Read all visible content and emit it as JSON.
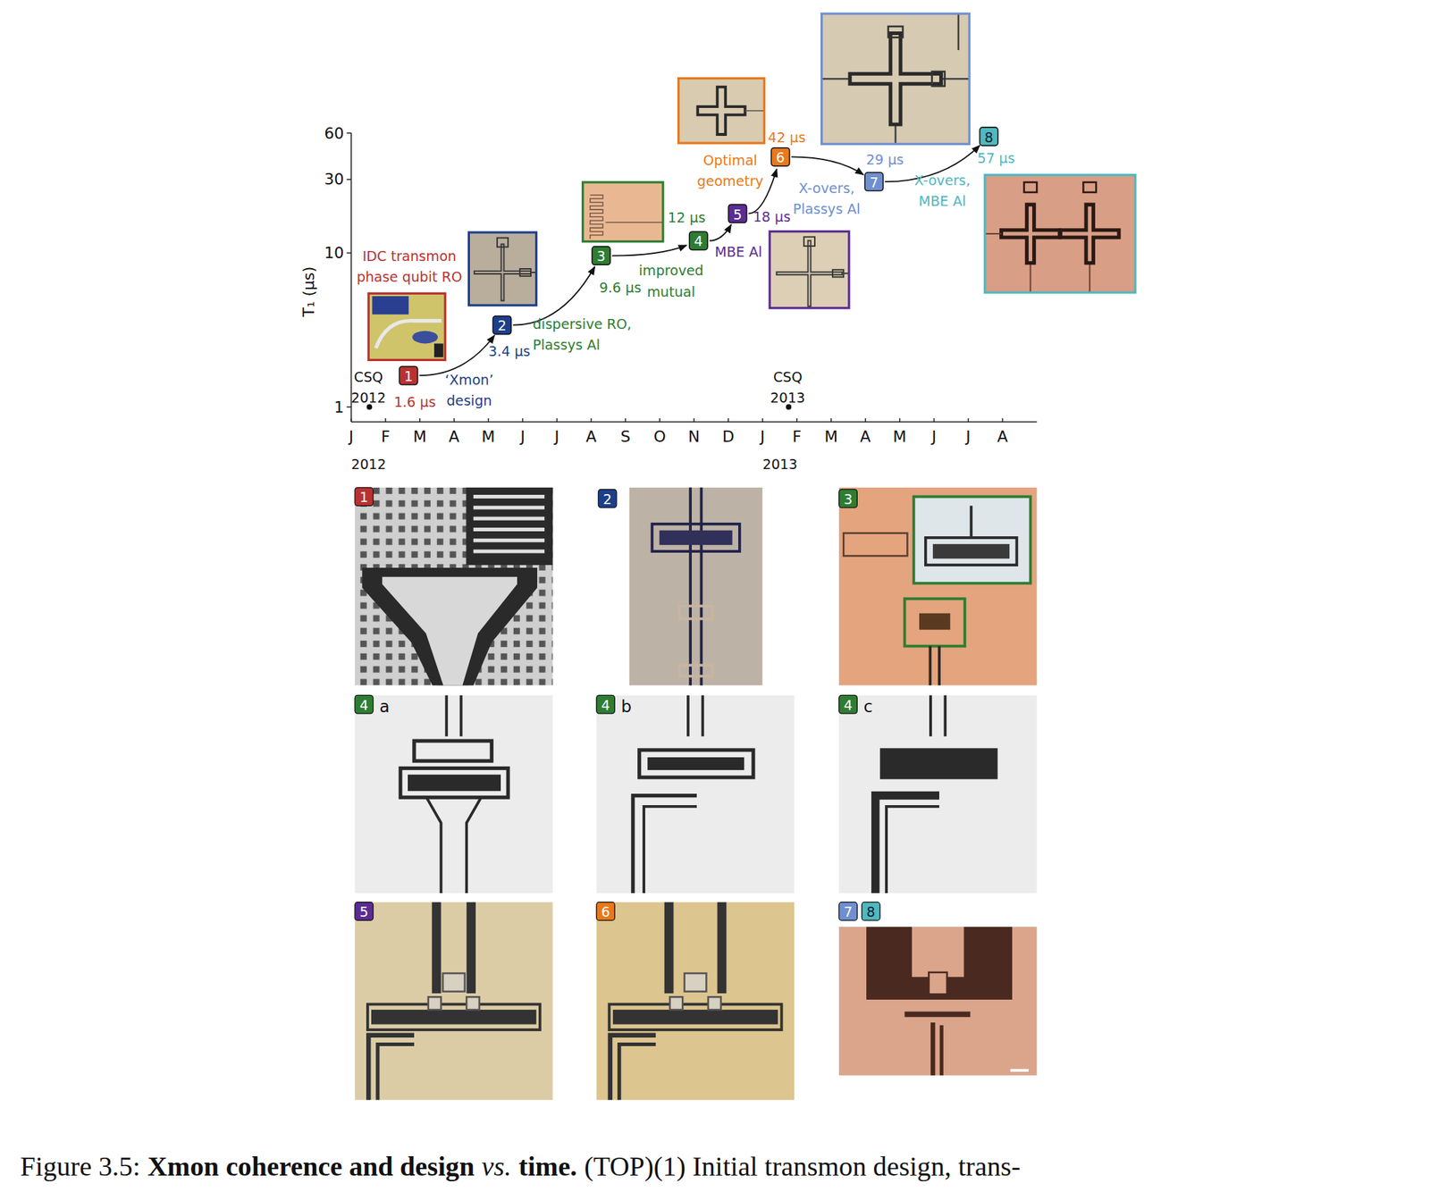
{
  "chart_data": {
    "type": "scatter",
    "y_label": "T₁ (μs)",
    "log": "y",
    "xlim": [
      0,
      20
    ],
    "ylim": [
      0.8,
      60
    ],
    "yticks": [
      1,
      10,
      30,
      60
    ],
    "xticks": [
      {
        "value": 0,
        "label": "J"
      },
      {
        "value": 1,
        "label": "F"
      },
      {
        "value": 2,
        "label": "M"
      },
      {
        "value": 3,
        "label": "A"
      },
      {
        "value": 4,
        "label": "M"
      },
      {
        "value": 5,
        "label": "J"
      },
      {
        "value": 6,
        "label": "J"
      },
      {
        "value": 7,
        "label": "A"
      },
      {
        "value": 8,
        "label": "S"
      },
      {
        "value": 9,
        "label": "O"
      },
      {
        "value": 10,
        "label": "N"
      },
      {
        "value": 11,
        "label": "D"
      },
      {
        "value": 12,
        "label": "J"
      },
      {
        "value": 13,
        "label": "F"
      },
      {
        "value": 14,
        "label": "M"
      },
      {
        "value": 15,
        "label": "A"
      },
      {
        "value": 16,
        "label": "M"
      },
      {
        "value": 17,
        "label": "J"
      },
      {
        "value": 18,
        "label": "J"
      },
      {
        "value": 19,
        "label": "A"
      }
    ],
    "year_labels": [
      {
        "value": 0,
        "label": "2012"
      },
      {
        "value": 12,
        "label": "2013"
      }
    ],
    "events": [
      {
        "x": 0.53,
        "y": 1,
        "label": [
          "CSQ",
          "2012"
        ]
      },
      {
        "x": 12.76,
        "y": 1,
        "label": [
          "CSQ",
          "2013"
        ]
      }
    ],
    "series": [
      {
        "x": [
          1.67,
          4.4,
          7.29,
          10.13,
          11.27,
          12.52,
          15.25,
          18.6
        ],
        "values": [
          1.6,
          3.4,
          9.6,
          12,
          18,
          42,
          29,
          57
        ],
        "value_labels": [
          "1.6 μs",
          "3.4 μs",
          "9.6 μs",
          "12 μs",
          "18 μs",
          "42 μs",
          "29 μs",
          "57 μs"
        ],
        "point_labels": [
          "1",
          "2",
          "3",
          "4",
          "5",
          "6",
          "7",
          "8"
        ],
        "annotations": [
          [
            "IDC transmon",
            "phase qubit RO"
          ],
          [
            "‘Xmon’",
            "design"
          ],
          [
            "dispersive RO,",
            "Plassys Al"
          ],
          [
            "improved",
            "mutual"
          ],
          [
            "MBE Al"
          ],
          [
            "Optimal",
            "geometry"
          ],
          [
            "X-overs,",
            "Plassys Al"
          ],
          [
            "X-overs,",
            "MBE Al"
          ]
        ],
        "colors": [
          "#b83232",
          "#1d3f8a",
          "#2e7d32",
          "#2e7d32",
          "#5a2d91",
          "#e8791c",
          "#6f8fd0",
          "#4fb8c0"
        ],
        "marker": "square",
        "line_style": "arrow"
      }
    ]
  },
  "panels": [
    {
      "badges": [
        "1"
      ],
      "colors": [
        "#b83232"
      ]
    },
    {
      "badges": [
        "2"
      ],
      "colors": [
        "#1d3f8a"
      ]
    },
    {
      "badges": [
        "3"
      ],
      "colors": [
        "#2e7d32"
      ]
    },
    {
      "badges": [
        "4"
      ],
      "colors": [
        "#2e7d32"
      ],
      "letter": "a"
    },
    {
      "badges": [
        "4"
      ],
      "colors": [
        "#2e7d32"
      ],
      "letter": "b"
    },
    {
      "badges": [
        "4"
      ],
      "colors": [
        "#2e7d32"
      ],
      "letter": "c"
    },
    {
      "badges": [
        "5"
      ],
      "colors": [
        "#5a2d91"
      ]
    },
    {
      "badges": [
        "6"
      ],
      "colors": [
        "#e8791c"
      ]
    },
    {
      "badges": [
        "7",
        "8"
      ],
      "colors": [
        "#6f8fd0",
        "#4fb8c0"
      ]
    }
  ],
  "caption": {
    "label": "Figure 3.5:",
    "title": [
      "Xmon coherence and design",
      "vs.",
      "time."
    ],
    "text": "(TOP)(1) Initial transmon design, trans-"
  }
}
